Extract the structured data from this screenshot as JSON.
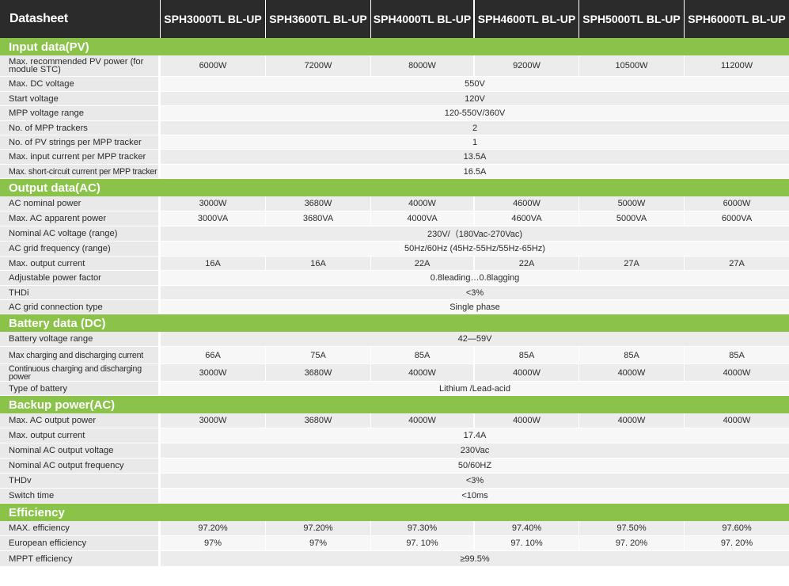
{
  "header": {
    "title": "Datasheet",
    "models": [
      "SPH3000TL BL-UP",
      "SPH3600TL BL-UP",
      "SPH4000TL BL-UP",
      "SPH4600TL BL-UP",
      "SPH5000TL BL-UP",
      "SPH6000TL BL-UP"
    ]
  },
  "colors": {
    "header_bg": "#2b2b2b",
    "section_bg": "#8bc34a",
    "label_bg": "#e9e9e9"
  },
  "sections": [
    {
      "title": "Input data(PV)",
      "rows": [
        {
          "label": "Max. recommended PV power (for module STC)",
          "values": [
            "6000W",
            "7200W",
            "8000W",
            "9200W",
            "10500W",
            "11200W"
          ]
        },
        {
          "label": "Max. DC voltage",
          "value": "550V"
        },
        {
          "label": "Start voltage",
          "value": "120V"
        },
        {
          "label": "MPP voltage range",
          "value": "120-550V/360V"
        },
        {
          "label": "No. of MPP trackers",
          "value": "2"
        },
        {
          "label": "No. of PV strings per MPP tracker",
          "value": "1"
        },
        {
          "label": "Max. input current per MPP tracker",
          "value": "13.5A"
        },
        {
          "label": "Max. short-circuit current per MPP tracker",
          "value": "16.5A"
        }
      ]
    },
    {
      "title": "Output data(AC)",
      "rows": [
        {
          "label": "AC nominal power",
          "values": [
            "3000W",
            "3680W",
            "4000W",
            "4600W",
            "5000W",
            "6000W"
          ]
        },
        {
          "label": "Max. AC apparent power",
          "values": [
            "3000VA",
            "3680VA",
            "4000VA",
            "4600VA",
            "5000VA",
            "6000VA"
          ]
        },
        {
          "label": "Nominal AC voltage (range)",
          "value": "230V/（180Vac-270Vac)"
        },
        {
          "label": "AC grid frequency (range)",
          "value": "50Hz/60Hz (45Hz-55Hz/55Hz-65Hz)"
        },
        {
          "label": "Max. output current",
          "values": [
            "16A",
            "16A",
            "22A",
            "22A",
            "27A",
            "27A"
          ]
        },
        {
          "label": "Adjustable power factor",
          "value": "0.8leading…0.8lagging"
        },
        {
          "label": "THDi",
          "value": "<3%"
        },
        {
          "label": "AC grid connection type",
          "value": "Single phase"
        }
      ]
    },
    {
      "title": "Battery data (DC)",
      "rows": [
        {
          "label": "Battery voltage range",
          "value": "42—59V"
        },
        {
          "label": "Max charging and discharging current",
          "values": [
            "66A",
            "75A",
            "85A",
            "85A",
            "85A",
            "85A"
          ]
        },
        {
          "label": "Continuous charging and discharging power",
          "values": [
            "3000W",
            "3680W",
            "4000W",
            "4000W",
            "4000W",
            "4000W"
          ]
        },
        {
          "label": "Type of battery",
          "value": "Lithium /Lead-acid"
        }
      ]
    },
    {
      "title": "Backup power(AC)",
      "rows": [
        {
          "label": "Max. AC output power",
          "values": [
            "3000W",
            "3680W",
            "4000W",
            "4000W",
            "4000W",
            "4000W"
          ]
        },
        {
          "label": "Max. output current",
          "value": "17.4A"
        },
        {
          "label": "Nominal AC output voltage",
          "value": "230Vac"
        },
        {
          "label": "Nominal AC output frequency",
          "value": "50/60HZ"
        },
        {
          "label": "THDv",
          "value": "<3%"
        },
        {
          "label": "Switch time",
          "value": "<10ms"
        }
      ]
    },
    {
      "title": "Efficiency",
      "rows": [
        {
          "label": "MAX. efficiency",
          "values": [
            "97.20%",
            "97.20%",
            "97.30%",
            "97.40%",
            "97.50%",
            "97.60%"
          ]
        },
        {
          "label": "European efficiency",
          "values": [
            "97%",
            "97%",
            "97. 10%",
            "97. 10%",
            "97. 20%",
            "97. 20%"
          ]
        },
        {
          "label": "MPPT efficiency",
          "value": "≥99.5%"
        }
      ]
    }
  ]
}
